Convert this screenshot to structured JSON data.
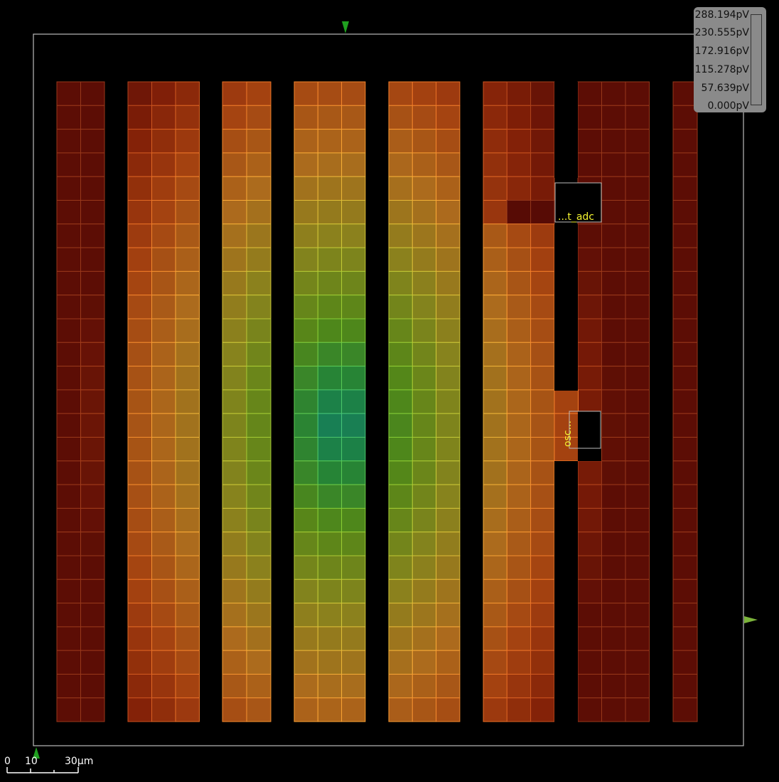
{
  "legend": {
    "labels": [
      "288.194pV",
      "230.555pV",
      "172.916pV",
      "115.278pV",
      "57.639pV",
      "0.000pV"
    ]
  },
  "scale_bar": {
    "labels": [
      "0",
      "10",
      "30μm"
    ]
  },
  "instances": [
    {
      "label": "...t_adc"
    },
    {
      "label": "osc..."
    }
  ],
  "colors": {
    "die_outline": "#bbbbbb",
    "marker": "#1fa01f",
    "marker_right": "#7bb33a",
    "label_text": "#f4f430",
    "background": "#000000"
  }
}
